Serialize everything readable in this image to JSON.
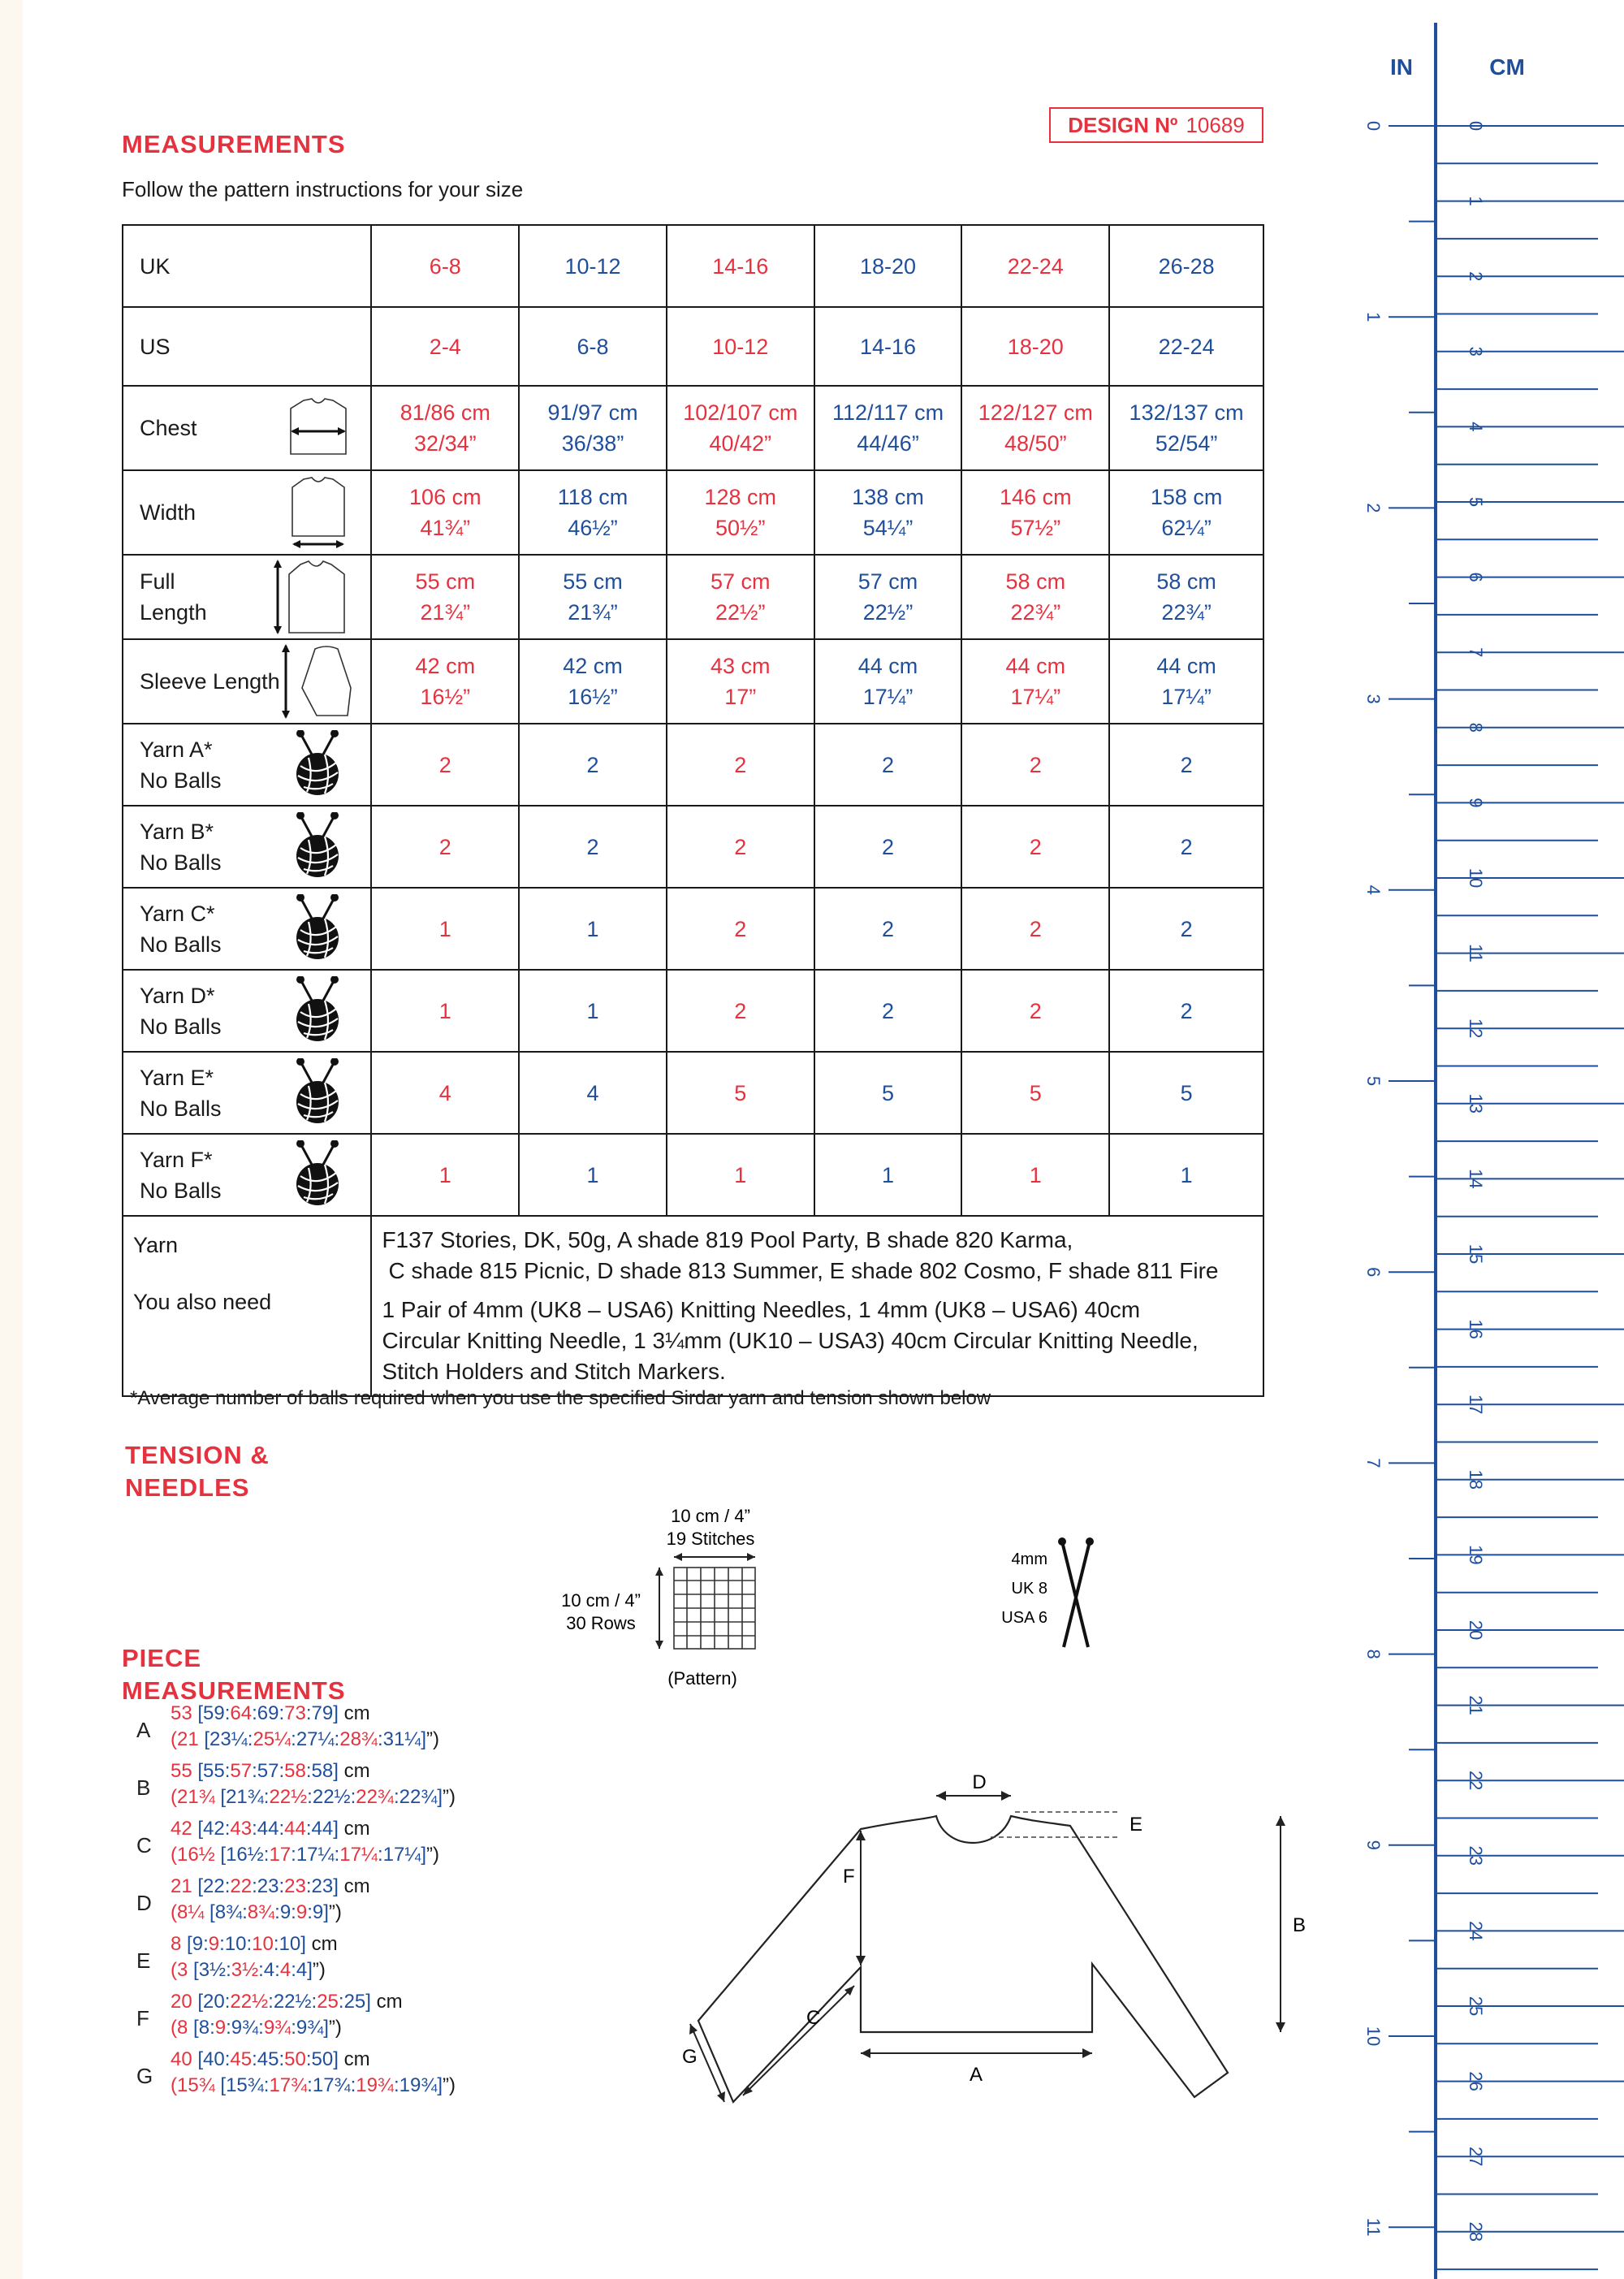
{
  "design": {
    "label": "DESIGN Nº",
    "number": "10689"
  },
  "measurements": {
    "title": "MEASUREMENTS",
    "subtitle": "Follow the pattern instructions for your size",
    "uk_label": "UK",
    "uk_sizes": [
      "6-8",
      "10-12",
      "14-16",
      "18-20",
      "22-24",
      "26-28"
    ],
    "us_label": "US",
    "us_sizes": [
      "2-4",
      "6-8",
      "10-12",
      "14-16",
      "18-20",
      "22-24"
    ],
    "rows": [
      {
        "label": "Chest",
        "values": [
          [
            "81/86 cm",
            "32/34”"
          ],
          [
            "91/97 cm",
            "36/38”"
          ],
          [
            "102/107 cm",
            "40/42”"
          ],
          [
            "112/117 cm",
            "44/46”"
          ],
          [
            "122/127 cm",
            "48/50”"
          ],
          [
            "132/137 cm",
            "52/54”"
          ]
        ]
      },
      {
        "label": "Width",
        "values": [
          [
            "106 cm",
            "41¾”"
          ],
          [
            "118 cm",
            "46½”"
          ],
          [
            "128 cm",
            "50½”"
          ],
          [
            "138 cm",
            "54¼”"
          ],
          [
            "146 cm",
            "57½”"
          ],
          [
            "158 cm",
            "62¼”"
          ]
        ]
      },
      {
        "label": "Full",
        "label2": "Length",
        "values": [
          [
            "55 cm",
            "21¾”"
          ],
          [
            "55 cm",
            "21¾”"
          ],
          [
            "57 cm",
            "22½”"
          ],
          [
            "57 cm",
            "22½”"
          ],
          [
            "58 cm",
            "22¾”"
          ],
          [
            "58 cm",
            "22¾”"
          ]
        ]
      },
      {
        "label": "Sleeve Length",
        "values": [
          [
            "42 cm",
            "16½”"
          ],
          [
            "42 cm",
            "16½”"
          ],
          [
            "43 cm",
            "17”"
          ],
          [
            "44 cm",
            "17¼”"
          ],
          [
            "44 cm",
            "17¼”"
          ],
          [
            "44 cm",
            "17¼”"
          ]
        ]
      }
    ],
    "yarn_rows": [
      {
        "label": "Yarn A*",
        "label2": "No Balls",
        "values": [
          "2",
          "2",
          "2",
          "2",
          "2",
          "2"
        ]
      },
      {
        "label": "Yarn B*",
        "label2": "No Balls",
        "values": [
          "2",
          "2",
          "2",
          "2",
          "2",
          "2"
        ]
      },
      {
        "label": "Yarn C*",
        "label2": "No Balls",
        "values": [
          "1",
          "1",
          "2",
          "2",
          "2",
          "2"
        ]
      },
      {
        "label": "Yarn D*",
        "label2": "No Balls",
        "values": [
          "1",
          "1",
          "2",
          "2",
          "2",
          "2"
        ]
      },
      {
        "label": "Yarn E*",
        "label2": "No Balls",
        "values": [
          "4",
          "4",
          "5",
          "5",
          "5",
          "5"
        ]
      },
      {
        "label": "Yarn F*",
        "label2": "No Balls",
        "values": [
          "1",
          "1",
          "1",
          "1",
          "1",
          "1"
        ]
      }
    ],
    "yarn_label": "Yarn",
    "yarn_line1": "F137 Stories, DK, 50g,  A shade 819 Pool Party, B shade 820 Karma,",
    "yarn_line2": "C shade 815 Picnic, D shade 813 Summer, E shade 802 Cosmo, F shade 811 Fire",
    "need_label": "You also need",
    "need_line1": "1 Pair of 4mm (UK8 – USA6) Knitting Needles, 1 4mm (UK8 – USA6) 40cm",
    "need_line2": "Circular Knitting Needle, 1 3¼mm (UK10 – USA3) 40cm Circular Knitting Needle,",
    "need_line3": "Stitch Holders and Stitch Markers.",
    "footnote": "*Average number of balls required when you use the specified Sirdar yarn and tension shown below"
  },
  "tension": {
    "title1": "TENSION &",
    "title2": "NEEDLES",
    "width_label": "10 cm / 4”",
    "stitches": "19 Stitches",
    "height_label": "10 cm / 4”",
    "rows": "30 Rows",
    "pattern": "(Pattern)",
    "needle_mm": "4mm",
    "needle_uk": "UK 8",
    "needle_usa": "USA 6"
  },
  "piece": {
    "title1": "PIECE",
    "title2": "MEASUREMENTS",
    "items": [
      {
        "letter": "A",
        "cm": [
          "53",
          "59",
          "64",
          "69",
          "73",
          "79"
        ],
        "in": [
          "21",
          "23¼",
          "25¼",
          "27¼",
          "28¾",
          "31¼"
        ]
      },
      {
        "letter": "B",
        "cm": [
          "55",
          "55",
          "57",
          "57",
          "58",
          "58"
        ],
        "in": [
          "21¾",
          "21¾",
          "22½",
          "22½",
          "22¾",
          "22¾"
        ]
      },
      {
        "letter": "C",
        "cm": [
          "42",
          "42",
          "43",
          "44",
          "44",
          "44"
        ],
        "in": [
          "16½",
          "16½",
          "17",
          "17¼",
          "17¼",
          "17¼"
        ]
      },
      {
        "letter": "D",
        "cm": [
          "21",
          "22",
          "22",
          "23",
          "23",
          "23"
        ],
        "in": [
          "8¼",
          "8¾",
          "8¾",
          "9",
          "9",
          "9"
        ]
      },
      {
        "letter": "E",
        "cm": [
          "8",
          "9",
          "9",
          "10",
          "10",
          "10"
        ],
        "in": [
          "3",
          "3½",
          "3½",
          "4",
          "4",
          "4"
        ]
      },
      {
        "letter": "F",
        "cm": [
          "20",
          "20",
          "22½",
          "22½",
          "25",
          "25"
        ],
        "in": [
          "8",
          "8",
          "9",
          "9¾",
          "9¾",
          "9¾"
        ]
      },
      {
        "letter": "G",
        "cm": [
          "40",
          "40",
          "45",
          "45",
          "50",
          "50"
        ],
        "in": [
          "15¾",
          "15¾",
          "17¾",
          "17¾",
          "19¾",
          "19¾"
        ]
      }
    ],
    "unit_cm": "cm",
    "diagram_labels": {
      "A": "A",
      "B": "B",
      "C": "C",
      "D": "D",
      "E": "E",
      "F": "F",
      "G": "G"
    }
  },
  "ruler": {
    "in_label": "IN",
    "cm_label": "CM",
    "inches": [
      "0",
      "1",
      "2",
      "3",
      "4",
      "5",
      "6",
      "7",
      "8",
      "9",
      "10",
      "11"
    ],
    "cms": [
      "0",
      "1",
      "2",
      "3",
      "4",
      "5",
      "6",
      "7",
      "8",
      "9",
      "10",
      "11",
      "12",
      "13",
      "14",
      "15",
      "16",
      "17",
      "18",
      "19",
      "20",
      "21",
      "22",
      "23",
      "24",
      "25",
      "26",
      "27",
      "28"
    ]
  },
  "colors": {
    "red": "#e6323f",
    "blue": "#1f4f9c",
    "ruler": "#1f4f9c"
  }
}
